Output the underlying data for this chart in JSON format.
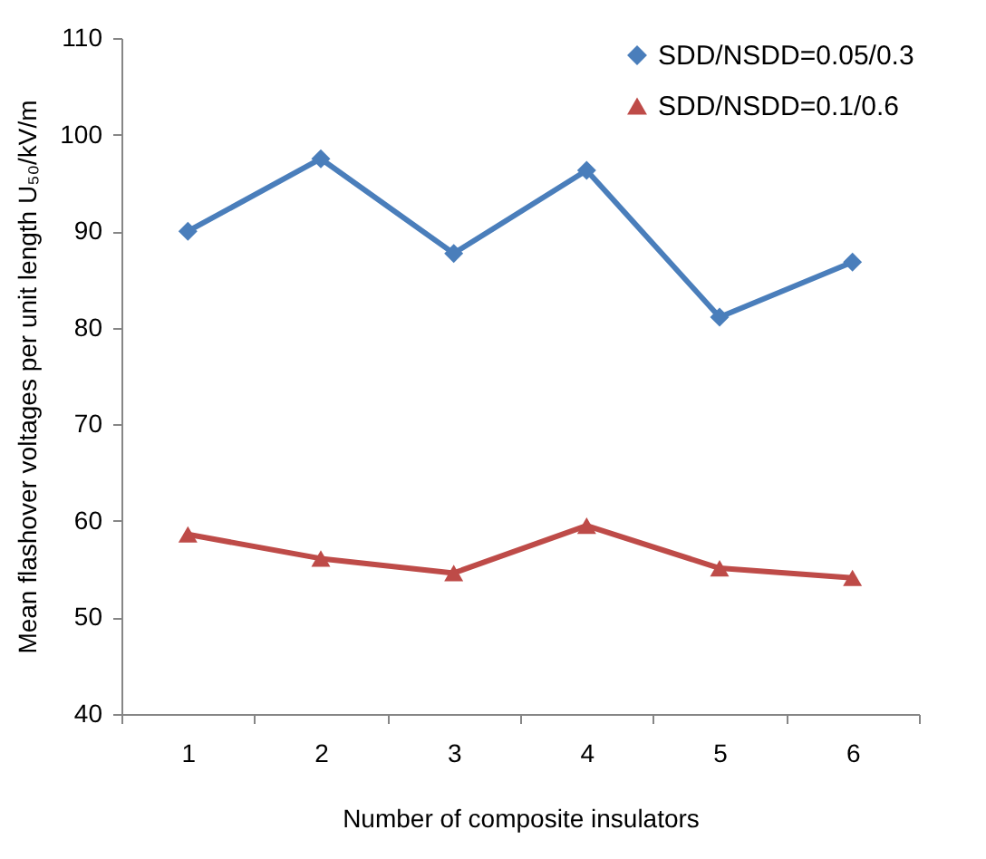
{
  "chart_data": {
    "type": "line",
    "xlabel": "Number of composite insulators",
    "ylabel": "Mean flashover voltages per unit length U₅₀/kV/m",
    "categories": [
      "1",
      "2",
      "3",
      "4",
      "5",
      "6"
    ],
    "ylim": [
      40,
      110
    ],
    "yticks": [
      40,
      50,
      60,
      70,
      80,
      90,
      100,
      110
    ],
    "grid": false,
    "legend": "top right",
    "series": [
      {
        "name": "SDD/NSDD=0.05/0.3",
        "color": "#4a7ebb",
        "marker": "diamond",
        "values": [
          90.0,
          97.5,
          87.7,
          96.3,
          81.1,
          86.8
        ]
      },
      {
        "name": "SDD/NSDD=0.1/0.6",
        "color": "#be4b48",
        "marker": "triangle",
        "values": [
          58.6,
          56.1,
          54.6,
          59.5,
          55.1,
          54.1
        ]
      }
    ]
  }
}
